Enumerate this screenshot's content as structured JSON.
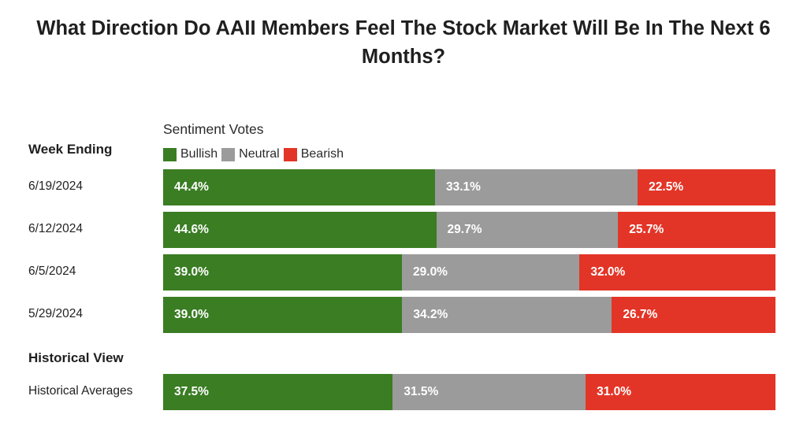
{
  "title": "What Direction Do AAII Members Feel The Stock Market Will Be In The Next 6 Months?",
  "sentiment_label": "Sentiment Votes",
  "week_ending_label": "Week Ending",
  "historical_view_label": "Historical View",
  "colors": {
    "bullish": "#3a7d23",
    "neutral": "#9b9b9b",
    "bearish": "#e33527"
  },
  "chart_data": {
    "type": "bar",
    "orientation": "horizontal",
    "stacked": true,
    "percent_stacked": true,
    "title": "What Direction Do AAII Members Feel The Stock Market Will Be In The Next 6 Months?",
    "legend": [
      "Bullish",
      "Neutral",
      "Bearish"
    ],
    "categories": [
      "6/19/2024",
      "6/12/2024",
      "6/5/2024",
      "5/29/2024"
    ],
    "series": [
      {
        "name": "Bullish",
        "values": [
          44.4,
          44.6,
          39.0,
          39.0
        ],
        "labels": [
          "44.4%",
          "44.6%",
          "39.0%",
          "39.0%"
        ]
      },
      {
        "name": "Neutral",
        "values": [
          33.1,
          29.7,
          29.0,
          34.2
        ],
        "labels": [
          "33.1%",
          "29.7%",
          "29.0%",
          "34.2%"
        ]
      },
      {
        "name": "Bearish",
        "values": [
          22.5,
          25.7,
          32.0,
          26.7
        ],
        "labels": [
          "22.5%",
          "25.7%",
          "32.0%",
          "26.7%"
        ]
      }
    ],
    "historical": {
      "category": "Historical Averages",
      "values": [
        37.5,
        31.5,
        31.0
      ],
      "labels": [
        "37.5%",
        "31.5%",
        "31.0%"
      ]
    }
  }
}
